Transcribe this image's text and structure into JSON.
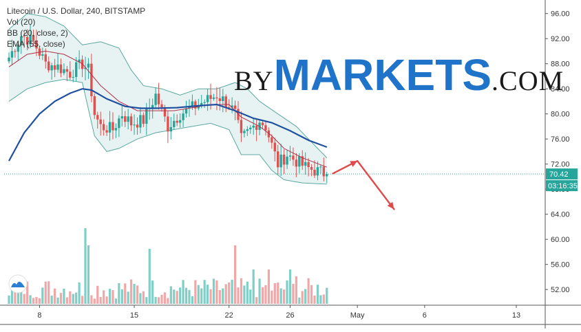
{
  "legend": {
    "symbol": "Litecoin / U.S. Dollar, 240, BITSTAMP",
    "vol": "Vol (20)",
    "bb": "BB (20, close, 2)",
    "ema": "EMA (55, close)"
  },
  "watermark": {
    "by": "BY",
    "markets": "MARKETS",
    "com": ".COM"
  },
  "price_tag": {
    "last": "70.42",
    "countdown": "03:16:35",
    "color": "#26a69a"
  },
  "colors": {
    "up": "#26a69a",
    "down": "#e0504f",
    "ema": "#1f4fa0",
    "bb_band": "#5aa8a0",
    "bb_basis": "#b0304a",
    "bb_fill": "#e6f3f2",
    "arrow": "#e04a4a",
    "vol_up": "#7fcfc6",
    "vol_down": "#f1a7a7"
  },
  "chart_data": {
    "type": "candlestick",
    "title": "Litecoin / U.S. Dollar, 240, BITSTAMP",
    "y_ticks": [
      "96.00",
      "92.00",
      "88.00",
      "84.00",
      "80.00",
      "76.00",
      "72.00",
      "68.00",
      "64.00",
      "60.00",
      "56.00",
      "52.00"
    ],
    "x_ticks": [
      "8",
      "15",
      "22",
      "26",
      "May",
      "6",
      "13"
    ],
    "ylim": [
      49.5,
      97.5
    ],
    "last_price": 70.42,
    "close_path": [
      {
        "t": 0,
        "p": 89.0
      },
      {
        "t": 4,
        "p": 92.5
      },
      {
        "t": 8,
        "p": 91.5
      },
      {
        "t": 12,
        "p": 88.0
      },
      {
        "t": 16,
        "p": 87.5
      },
      {
        "t": 20,
        "p": 86.5
      },
      {
        "t": 24,
        "p": 88.0
      },
      {
        "t": 26,
        "p": 87.0
      },
      {
        "t": 28,
        "p": 80.0
      },
      {
        "t": 30,
        "p": 78.0
      },
      {
        "t": 34,
        "p": 77.5
      },
      {
        "t": 37,
        "p": 80.0
      },
      {
        "t": 40,
        "p": 78.5
      },
      {
        "t": 44,
        "p": 79.0
      },
      {
        "t": 46,
        "p": 81.0
      },
      {
        "t": 48,
        "p": 83.0
      },
      {
        "t": 50,
        "p": 80.5
      },
      {
        "t": 52,
        "p": 78.0
      },
      {
        "t": 56,
        "p": 80.0
      },
      {
        "t": 60,
        "p": 81.0
      },
      {
        "t": 64,
        "p": 82.0
      },
      {
        "t": 68,
        "p": 83.0
      },
      {
        "t": 72,
        "p": 81.5
      },
      {
        "t": 74,
        "p": 80.0
      },
      {
        "t": 76,
        "p": 76.0
      },
      {
        "t": 79,
        "p": 77.5
      },
      {
        "t": 82,
        "p": 79.0
      },
      {
        "t": 84,
        "p": 78.0
      },
      {
        "t": 86,
        "p": 75.0
      },
      {
        "t": 88,
        "p": 72.0
      },
      {
        "t": 91,
        "p": 73.5
      },
      {
        "t": 94,
        "p": 72.5
      },
      {
        "t": 97,
        "p": 71.5
      },
      {
        "t": 100,
        "p": 71.0
      },
      {
        "t": 104,
        "p": 70.42
      }
    ],
    "ema_points": [
      {
        "t": 0,
        "p": 72.5
      },
      {
        "t": 5,
        "p": 77.0
      },
      {
        "t": 10,
        "p": 80.0
      },
      {
        "t": 15,
        "p": 82.0
      },
      {
        "t": 20,
        "p": 83.3
      },
      {
        "t": 24,
        "p": 84.0
      },
      {
        "t": 27,
        "p": 83.8
      },
      {
        "t": 32,
        "p": 82.4
      },
      {
        "t": 38,
        "p": 81.2
      },
      {
        "t": 43,
        "p": 80.9
      },
      {
        "t": 48,
        "p": 80.9
      },
      {
        "t": 55,
        "p": 81.0
      },
      {
        "t": 62,
        "p": 81.3
      },
      {
        "t": 68,
        "p": 81.5
      },
      {
        "t": 74,
        "p": 80.5
      },
      {
        "t": 80,
        "p": 79.3
      },
      {
        "t": 86,
        "p": 78.6
      },
      {
        "t": 92,
        "p": 77.3
      },
      {
        "t": 98,
        "p": 75.8
      },
      {
        "t": 104,
        "p": 74.7
      }
    ],
    "bb_upper": [
      {
        "t": 0,
        "p": 93.5
      },
      {
        "t": 6,
        "p": 96.0
      },
      {
        "t": 12,
        "p": 95.5
      },
      {
        "t": 18,
        "p": 94.0
      },
      {
        "t": 24,
        "p": 91.0
      },
      {
        "t": 30,
        "p": 91.5
      },
      {
        "t": 36,
        "p": 90.5
      },
      {
        "t": 40,
        "p": 87.0
      },
      {
        "t": 44,
        "p": 84.5
      },
      {
        "t": 50,
        "p": 84.0
      },
      {
        "t": 56,
        "p": 83.0
      },
      {
        "t": 62,
        "p": 84.0
      },
      {
        "t": 68,
        "p": 84.0
      },
      {
        "t": 74,
        "p": 85.0
      },
      {
        "t": 78,
        "p": 84.0
      },
      {
        "t": 82,
        "p": 82.0
      },
      {
        "t": 88,
        "p": 80.0
      },
      {
        "t": 94,
        "p": 78.0
      },
      {
        "t": 98,
        "p": 76.0
      },
      {
        "t": 104,
        "p": 73.0
      }
    ],
    "bb_lower": [
      {
        "t": 0,
        "p": 82.0
      },
      {
        "t": 6,
        "p": 84.0
      },
      {
        "t": 12,
        "p": 85.0
      },
      {
        "t": 18,
        "p": 85.5
      },
      {
        "t": 24,
        "p": 85.0
      },
      {
        "t": 28,
        "p": 76.5
      },
      {
        "t": 32,
        "p": 74.0
      },
      {
        "t": 36,
        "p": 74.5
      },
      {
        "t": 42,
        "p": 76.0
      },
      {
        "t": 48,
        "p": 77.0
      },
      {
        "t": 54,
        "p": 77.5
      },
      {
        "t": 60,
        "p": 78.0
      },
      {
        "t": 66,
        "p": 78.5
      },
      {
        "t": 72,
        "p": 77.5
      },
      {
        "t": 76,
        "p": 73.5
      },
      {
        "t": 82,
        "p": 73.5
      },
      {
        "t": 86,
        "p": 71.0
      },
      {
        "t": 90,
        "p": 69.5
      },
      {
        "t": 96,
        "p": 69.0
      },
      {
        "t": 104,
        "p": 68.8
      }
    ],
    "bb_basis": [
      {
        "t": 0,
        "p": 87.5
      },
      {
        "t": 6,
        "p": 89.5
      },
      {
        "t": 12,
        "p": 90.0
      },
      {
        "t": 18,
        "p": 89.5
      },
      {
        "t": 24,
        "p": 88.0
      },
      {
        "t": 30,
        "p": 84.5
      },
      {
        "t": 36,
        "p": 82.0
      },
      {
        "t": 42,
        "p": 80.5
      },
      {
        "t": 48,
        "p": 80.5
      },
      {
        "t": 54,
        "p": 80.5
      },
      {
        "t": 60,
        "p": 81.0
      },
      {
        "t": 66,
        "p": 81.5
      },
      {
        "t": 72,
        "p": 81.5
      },
      {
        "t": 76,
        "p": 79.5
      },
      {
        "t": 82,
        "p": 78.0
      },
      {
        "t": 86,
        "p": 76.5
      },
      {
        "t": 90,
        "p": 74.5
      },
      {
        "t": 96,
        "p": 73.0
      },
      {
        "t": 104,
        "p": 71.5
      }
    ],
    "volume_spikes": [
      {
        "t": 25,
        "v": 22
      },
      {
        "t": 26,
        "v": 17
      },
      {
        "t": 46,
        "v": 16
      },
      {
        "t": 74,
        "v": 17
      },
      {
        "t": 80,
        "v": 10
      },
      {
        "t": 85,
        "v": 10
      },
      {
        "t": 92,
        "v": 10
      },
      {
        "t": 94,
        "v": 8
      }
    ],
    "forecast_arrow": [
      {
        "t": 106,
        "p": 70.5
      },
      {
        "t": 114,
        "p": 72.5
      },
      {
        "t": 126,
        "p": 64.8
      }
    ]
  }
}
